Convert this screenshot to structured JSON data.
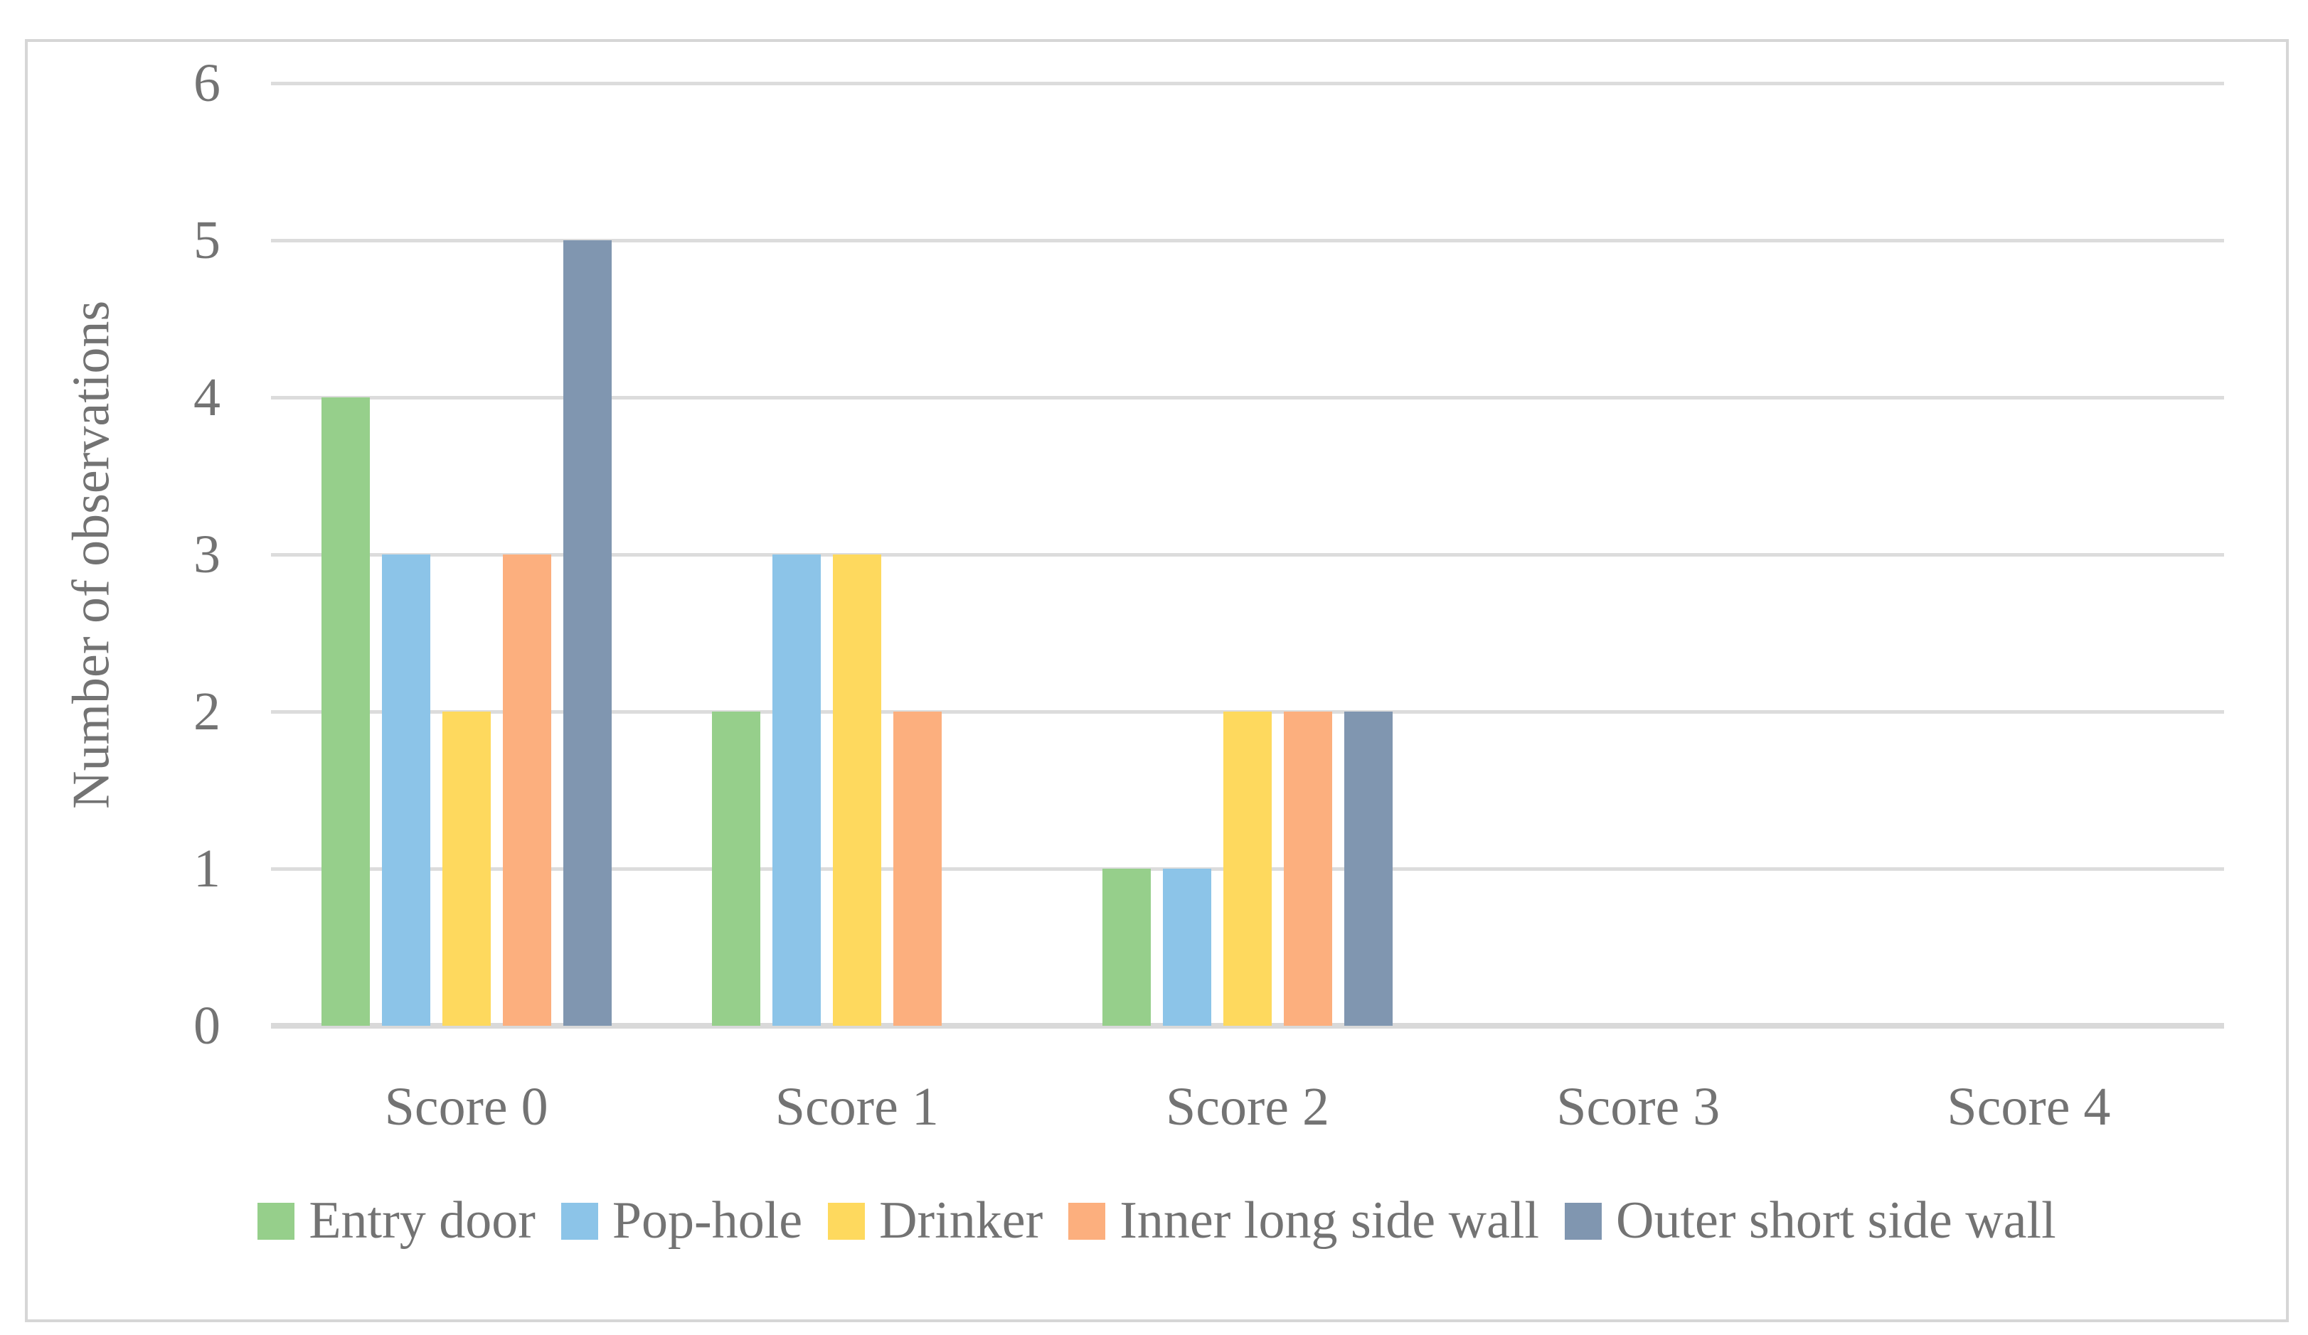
{
  "figure": {
    "background": "#FFFFFF",
    "border_color": "#D6D6D6"
  },
  "chart_data": {
    "type": "bar",
    "title": "",
    "xlabel": "",
    "ylabel": "Number of observations",
    "categories": [
      "Score 0",
      "Score 1",
      "Score 2",
      "Score 3",
      "Score 4"
    ],
    "series": [
      {
        "name": "Entry door",
        "color": "#96CF8B",
        "values": [
          4,
          2,
          1,
          0,
          0
        ]
      },
      {
        "name": "Pop-hole",
        "color": "#8CC4E8",
        "values": [
          3,
          3,
          1,
          0,
          0
        ]
      },
      {
        "name": "Drinker",
        "color": "#FED95E",
        "values": [
          2,
          3,
          2,
          0,
          0
        ]
      },
      {
        "name": "Inner long side wall",
        "color": "#FCAF7E",
        "values": [
          3,
          2,
          2,
          0,
          0
        ]
      },
      {
        "name": "Outer short side wall",
        "color": "#8096B0",
        "values": [
          5,
          0,
          2,
          0,
          0
        ]
      }
    ],
    "ylim": [
      0,
      6
    ],
    "yticks": [
      0,
      1,
      2,
      3,
      4,
      5,
      6
    ],
    "grid": "horizontal",
    "gridline_color": "#DCDCDC",
    "axis_line_color": "#D9D9D9",
    "text_color": "#737373",
    "legend_position": "bottom"
  }
}
